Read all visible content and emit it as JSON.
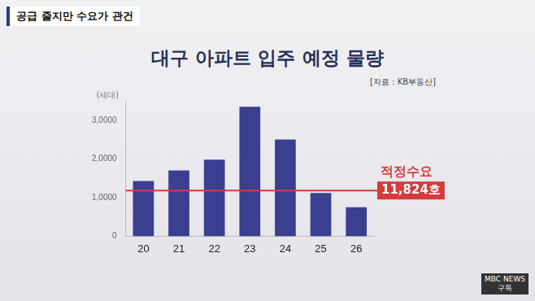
{
  "chart_data": {
    "type": "bar",
    "tag": "공급 줄지만 수요가 관건",
    "title": "대구 아파트 입주 예정 물량",
    "source": "[자료 : KB부동산]",
    "y_label": "(세대)",
    "broadcaster": [
      "MBC NEWS",
      "구독"
    ],
    "categories": [
      "20",
      "21",
      "22",
      "23",
      "24",
      "25",
      "26"
    ],
    "values": [
      14300,
      17000,
      19800,
      33500,
      25000,
      11200,
      7500
    ],
    "color": "#3a3f91",
    "ylim": [
      0,
      35000
    ],
    "yticks": [
      0,
      {
        "value": 10000,
        "label": "1,0000"
      },
      {
        "value": 20000,
        "label": "2,0000"
      },
      {
        "value": 30000,
        "label": "3,0000"
      }
    ],
    "grid": false,
    "reference_line": {
      "value": 11824,
      "label": "적정수요",
      "value_label": "11,824호",
      "color": "#d63b3b"
    }
  }
}
